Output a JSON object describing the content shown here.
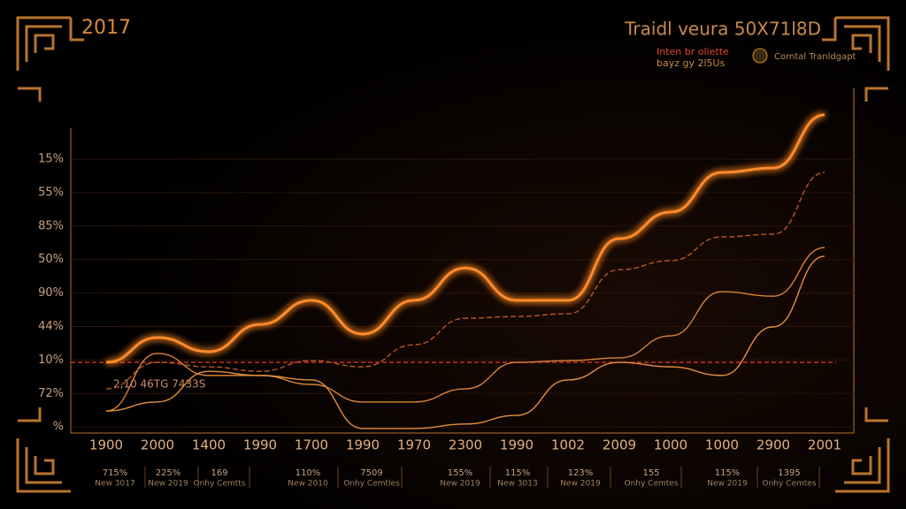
{
  "chart_data": {
    "type": "line",
    "title": "Traidl veura 50X71l8D",
    "subtitle": [
      "Inten br oliette",
      "bayz gy 2l5Us"
    ],
    "year_label": "2017",
    "legend_label": "Corntal Tranldgapt",
    "annotation": "2,10 46TG 7433S",
    "y_labels": [
      "15%",
      "55%",
      "85%",
      "50%",
      "90%",
      "44%",
      "10%",
      "72%",
      "%"
    ],
    "categories": [
      "1900",
      "2000",
      "1400",
      "1990",
      "1700",
      "1990",
      "1970",
      "2300",
      "1990",
      "1002",
      "2009",
      "1000",
      "1000",
      "2900",
      "2001"
    ],
    "x_sublabels": [
      [
        "715%",
        "New 3017"
      ],
      [
        "225%",
        "New 2019"
      ],
      [
        "169",
        "Onhy Cemtts"
      ],
      [
        "110%",
        "New 2010"
      ],
      [
        "7509",
        "Onhy Cemtles"
      ],
      [
        "155%",
        "New 2019"
      ],
      [
        "115%",
        "New 3013"
      ],
      [
        "123%",
        "New 2019"
      ],
      [
        "155",
        "Onhy Cemtes"
      ],
      [
        "115%",
        "New 2019"
      ],
      [
        "1395",
        "Onhy Cemtes"
      ]
    ],
    "ylim": [
      0,
      100
    ],
    "threshold": 20.5,
    "series": [
      {
        "color": "#ff8a2a",
        "values": [
          20.5,
          27.7,
          23.6,
          31.5,
          38.5,
          28.7,
          38.5,
          47.9,
          38.5,
          38.5,
          56.4,
          64.1,
          75.6,
          76.9,
          92.3
        ]
      },
      {
        "color": "#b8562a",
        "values": [
          12.8,
          20.5,
          19.2,
          17.9,
          21,
          19.2,
          25.6,
          33.3,
          33.8,
          34.6,
          47.4,
          50,
          56.9,
          57.7,
          75.6
        ]
      },
      {
        "color": "#d9823a",
        "values": [
          6.4,
          23.1,
          16.7,
          16.7,
          14.1,
          9,
          9,
          12.8,
          20.5,
          21,
          21.8,
          28.2,
          41,
          39.7,
          53.8
        ]
      },
      {
        "color": "#e39040",
        "values": [
          6.4,
          9,
          17.9,
          16.7,
          15.4,
          1.3,
          1.3,
          2.6,
          5.1,
          15.4,
          20.5,
          19.2,
          16.7,
          30.8,
          51.3
        ]
      }
    ]
  }
}
